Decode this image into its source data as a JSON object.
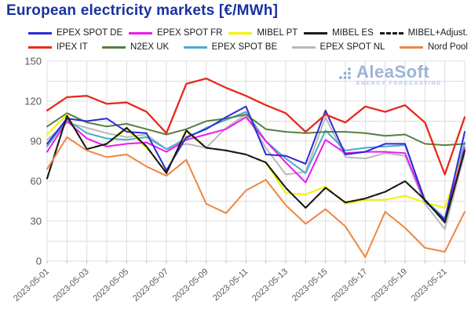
{
  "header": {
    "title": "European electricity markets [€/MWh]"
  },
  "logo": {
    "name": "AleaSoft",
    "tagline": "ENERGY FORECASTING"
  },
  "legend": {
    "rows": [
      [
        {
          "label": "EPEX SPOT DE",
          "color": "#2b2bd5",
          "dashed": false
        },
        {
          "label": "EPEX SPOT FR",
          "color": "#f018f0",
          "dashed": false
        },
        {
          "label": "MIBEL PT",
          "color": "#f2f200",
          "dashed": false
        },
        {
          "label": "MIBEL ES",
          "color": "#1a1a1a",
          "dashed": false
        },
        {
          "label": "MIBEL+Adjust.",
          "color": "#1a1a1a",
          "dashed": true
        }
      ],
      [
        {
          "label": "IPEX IT",
          "color": "#e8291d",
          "dashed": false
        },
        {
          "label": "N2EX UK",
          "color": "#567f3e",
          "dashed": false
        },
        {
          "label": "EPEX SPOT BE",
          "color": "#4aabcb",
          "dashed": false
        },
        {
          "label": "EPEX SPOT NL",
          "color": "#b9b9b9",
          "dashed": false
        },
        {
          "label": "Nord Pool",
          "color": "#ef8640",
          "dashed": false
        }
      ]
    ]
  },
  "chart_data": {
    "type": "line",
    "title": "European electricity markets [€/MWh]",
    "xlabel": "",
    "ylabel": "€/MWh",
    "ylim": [
      0,
      150
    ],
    "y_major_step": 30,
    "y_minor_step": 15,
    "grid": true,
    "legend_position": "top",
    "y_tick_labels": [
      "0",
      "30",
      "60",
      "90",
      "120",
      "150"
    ],
    "x": [
      "2023-05-01",
      "2023-05-02",
      "2023-05-03",
      "2023-05-04",
      "2023-05-05",
      "2023-05-06",
      "2023-05-07",
      "2023-05-08",
      "2023-05-09",
      "2023-05-10",
      "2023-05-11",
      "2023-05-12",
      "2023-05-13",
      "2023-05-14",
      "2023-05-15",
      "2023-05-16",
      "2023-05-17",
      "2023-05-18",
      "2023-05-19",
      "2023-05-20",
      "2023-05-21",
      "2023-05-22"
    ],
    "x_tick_labels": [
      "2023-05-01",
      "2023-05-03",
      "2023-05-05",
      "2023-05-07",
      "2023-05-09",
      "2023-05-11",
      "2023-05-13",
      "2023-05-15",
      "2023-05-17",
      "2023-05-19",
      "2023-05-21"
    ],
    "series": [
      {
        "name": "EPEX SPOT NL",
        "color": "#b9b9b9",
        "dashed": false,
        "values": [
          91,
          104,
          100,
          96,
          93,
          95,
          84,
          88,
          85,
          100,
          110,
          85,
          65,
          67,
          108,
          78,
          77,
          81,
          79,
          43,
          24,
          81
        ]
      },
      {
        "name": "EPEX SPOT BE",
        "color": "#4aabcb",
        "dashed": false,
        "values": [
          86,
          106,
          96,
          92,
          91,
          93,
          84,
          92,
          100,
          106,
          112,
          90,
          77,
          66,
          98,
          83,
          85,
          86,
          87,
          46,
          32,
          89
        ]
      },
      {
        "name": "N2EX UK",
        "color": "#567f3e",
        "dashed": false,
        "values": [
          101,
          111,
          104,
          101,
          103,
          99,
          95,
          99,
          105,
          107,
          110,
          99,
          97,
          96,
          97,
          97,
          96,
          94,
          95,
          88,
          87,
          88
        ]
      },
      {
        "name": "MIBEL PT",
        "color": "#f2f200",
        "dashed": false,
        "values": [
          95,
          110,
          84,
          88,
          99,
          85,
          67,
          97,
          85,
          83,
          80,
          74,
          51,
          50,
          56,
          43,
          46,
          46,
          49,
          44,
          40,
          84
        ]
      },
      {
        "name": "EPEX SPOT FR",
        "color": "#f018f0",
        "dashed": false,
        "values": [
          82,
          105,
          92,
          86,
          88,
          89,
          82,
          91,
          95,
          99,
          108,
          90,
          74,
          59,
          91,
          81,
          82,
          82,
          81,
          45,
          31,
          85
        ]
      },
      {
        "name": "EPEX SPOT DE",
        "color": "#2b2bd5",
        "dashed": false,
        "values": [
          88,
          107,
          105,
          107,
          97,
          96,
          68,
          93,
          99,
          108,
          116,
          80,
          79,
          73,
          113,
          80,
          82,
          88,
          88,
          45,
          31,
          97
        ]
      },
      {
        "name": "MIBEL ES",
        "color": "#1a1a1a",
        "dashed": false,
        "values": [
          62,
          109,
          84,
          88,
          100,
          86,
          66,
          98,
          85,
          83,
          80,
          74,
          55,
          40,
          55,
          44,
          47,
          52,
          60,
          46,
          29,
          83
        ]
      },
      {
        "name": "MIBEL+Adjust.",
        "color": "#1a1a1a",
        "dashed": true,
        "values": [
          62,
          109,
          84,
          88,
          100,
          86,
          66,
          98,
          85,
          83,
          80,
          74,
          55,
          40,
          55,
          44,
          47,
          52,
          60,
          46,
          29,
          83
        ]
      },
      {
        "name": "Nord Pool",
        "color": "#ef8640",
        "dashed": false,
        "values": [
          69,
          93,
          83,
          78,
          80,
          71,
          64,
          76,
          43,
          36,
          53,
          61,
          42,
          28,
          39,
          26,
          3,
          37,
          25,
          10,
          7,
          37
        ]
      },
      {
        "name": "IPEX IT",
        "color": "#e8291d",
        "dashed": false,
        "values": [
          113,
          123,
          124,
          118,
          119,
          112,
          96,
          133,
          137,
          130,
          124,
          117,
          111,
          97,
          110,
          104,
          116,
          112,
          117,
          104,
          65,
          108
        ]
      }
    ]
  }
}
